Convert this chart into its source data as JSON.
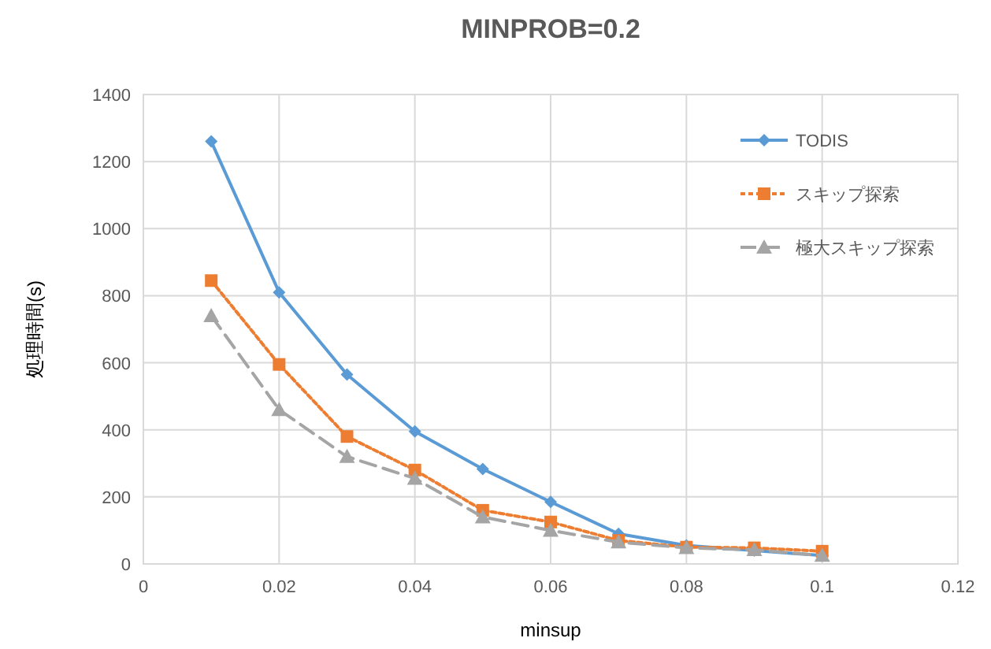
{
  "chart_data": {
    "type": "line",
    "title": "MINPROB=0.2",
    "xlabel": "minsup",
    "ylabel": "処理時間(s)",
    "x": [
      0.01,
      0.02,
      0.03,
      0.04,
      0.05,
      0.06,
      0.07,
      0.08,
      0.09,
      0.1
    ],
    "series": [
      {
        "name": "TODIS",
        "color": "#5b9bd5",
        "marker": "diamond",
        "line_style": "solid",
        "values": [
          1260,
          810,
          565,
          395,
          283,
          185,
          90,
          55,
          40,
          25
        ]
      },
      {
        "name": "スキップ探索",
        "color": "#ed7d31",
        "marker": "square",
        "line_style": "dotted",
        "values": [
          845,
          595,
          380,
          280,
          160,
          125,
          70,
          50,
          48,
          38
        ]
      },
      {
        "name": "極大スキップ探索",
        "color": "#a5a5a5",
        "marker": "triangle",
        "line_style": "dashed",
        "values": [
          740,
          460,
          320,
          255,
          140,
          100,
          65,
          48,
          42,
          25
        ]
      }
    ],
    "xlim": [
      0,
      0.12
    ],
    "xticks": [
      0,
      {
        "value": 0.02,
        "label": "0.02"
      },
      {
        "value": 0.04,
        "label": "0.04"
      },
      {
        "value": 0.06,
        "label": "0.06"
      },
      {
        "value": 0.08,
        "label": "0.08"
      },
      0.1,
      {
        "value": 0.12,
        "label": "0.12"
      }
    ],
    "ylim": [
      0,
      1400
    ],
    "yticks": [
      0,
      200,
      400,
      600,
      800,
      1000,
      1200,
      1400
    ],
    "grid": true,
    "legend": "top right"
  }
}
